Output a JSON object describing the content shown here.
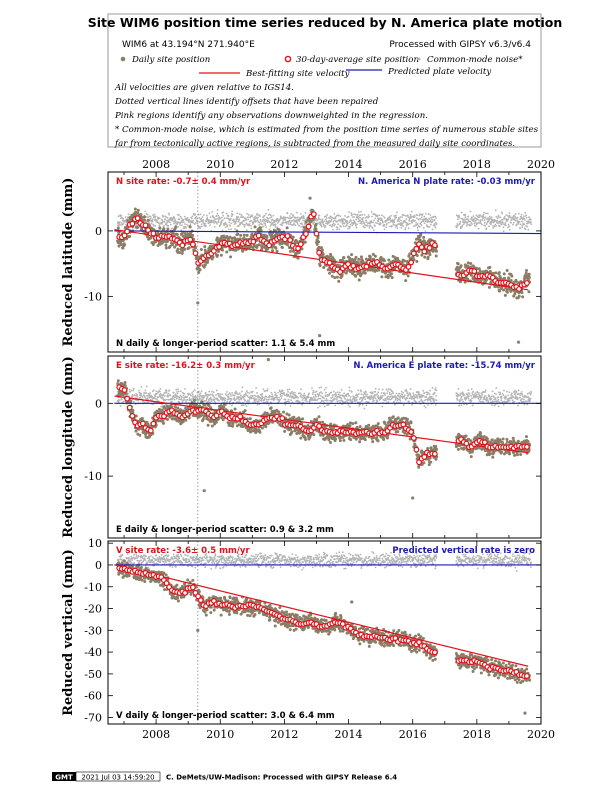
{
  "header": {
    "title": "Site WIM6 position time series reduced by N. America plate motion",
    "site_location": "WIM6 at 43.194°N 271.940°E",
    "processing": "Processed with GIPSY v6.3/v6.4",
    "legend": {
      "daily": "Daily site position",
      "avg30": "30-day-average site position",
      "cm_noise": "Common-mode noise*",
      "best_fit": "Best-fitting site velocity",
      "predicted": "Predicted plate velocity"
    },
    "notes": [
      "All velocities are given relative to IGS14.",
      "Dotted vertical lines identify offsets that have been repaired",
      "Pink regions identify any observations downweighted in the regression.",
      "* Common-mode noise, which is estimated from the position time series of numerous stable sites",
      "far from tectonically active regions, is subtracted from the measured daily site coordinates."
    ]
  },
  "colors": {
    "daily": "#8b7d66",
    "cm_noise": "#b4b4b4",
    "avg30_edge": "#e0121a",
    "best_fit": "#e0121a",
    "predicted": "#1a1ab4",
    "offset_line": "#888888"
  },
  "x_axis_ticks": [
    "2008",
    "2010",
    "2012",
    "2014",
    "2016",
    "2018",
    "2020"
  ],
  "footer": {
    "logo": "GMT",
    "timestamp": "2021 Jul 03 14:59:20",
    "credit": "C. DeMets/UW-Madison: Processed with GIPSY Release 6.4"
  },
  "chart_data": [
    {
      "type": "scatter",
      "component": "north",
      "ylabel": "Reduced latitude (mm)",
      "yticks": [
        "0",
        "-10"
      ],
      "xlim": [
        2006.5,
        2020
      ],
      "ylim": [
        -18.5,
        9
      ],
      "site_rate_label": "N site rate:  -0.7± 0.4 mm/yr",
      "plate_rate_label": "N. America N plate rate:  -0.03 mm/yr",
      "scatter_label": "N daily & longer-period scatter:   1.1 &   5.4 mm",
      "offsets": [
        2009.3
      ],
      "best_fit": {
        "x": [
          2006.7,
          2019.6
        ],
        "y": [
          0.2,
          -9.0
        ]
      },
      "predicted": {
        "x": [
          2006.7,
          2020
        ],
        "y": [
          0,
          -0.4
        ]
      },
      "avg30": {
        "x": [
          2006.8,
          2007.0,
          2007.2,
          2007.4,
          2007.6,
          2007.8,
          2008.0,
          2008.5,
          2008.8,
          2009.1,
          2009.3,
          2009.5,
          2009.8,
          2010.0,
          2010.3,
          2010.6,
          2010.9,
          2011.2,
          2011.5,
          2011.8,
          2012.1,
          2012.4,
          2012.7,
          2012.9,
          2013.1,
          2013.4,
          2013.7,
          2014.0,
          2014.3,
          2014.6,
          2014.9,
          2015.2,
          2015.5,
          2015.8,
          2016.0,
          2016.2,
          2016.4,
          2016.6,
          2017.5,
          2017.8,
          2018.1,
          2018.4,
          2018.7,
          2019.0,
          2019.3,
          2019.5
        ],
        "y": [
          -1,
          -1,
          1,
          2,
          1,
          0,
          -1,
          -1,
          -2,
          -1,
          -5,
          -4,
          -3,
          -2,
          -2,
          -2,
          -2,
          -1,
          -2,
          -1,
          -1,
          -3,
          0,
          3,
          -4,
          -5,
          -6,
          -5,
          -6,
          -5,
          -5,
          -6,
          -5,
          -6,
          -4,
          -2,
          -3,
          -2,
          -7,
          -6,
          -7,
          -7,
          -8,
          -8,
          -9,
          -8
        ]
      },
      "daily_cloud": {
        "spread": 1.9,
        "outliers": [
          [
            2009.3,
            -11
          ],
          [
            2013.1,
            -16
          ],
          [
            2019.3,
            -17
          ],
          [
            2012.8,
            5
          ]
        ]
      },
      "cm_cloud": {
        "level": 1.5,
        "spread": 1.6
      }
    },
    {
      "type": "scatter",
      "component": "east",
      "ylabel": "Reduced longitude (mm)",
      "yticks": [
        "0",
        "-10"
      ],
      "xlim": [
        2006.5,
        2020
      ],
      "ylim": [
        -18.5,
        6.5
      ],
      "site_rate_label": "E site rate:  -16.2± 0.3 mm/yr",
      "plate_rate_label": "N. America E plate rate:  -15.74 mm/yr",
      "scatter_label": "E daily & longer-period scatter:   0.9 &   3.2 mm",
      "offsets": [
        2009.3
      ],
      "best_fit": {
        "x": [
          2006.7,
          2019.6
        ],
        "y": [
          1.0,
          -6.8
        ]
      },
      "predicted": {
        "x": [
          2006.7,
          2020
        ],
        "y": [
          0,
          0
        ]
      },
      "avg30": {
        "x": [
          2006.8,
          2007.0,
          2007.2,
          2007.4,
          2007.6,
          2007.8,
          2008.0,
          2008.5,
          2008.8,
          2009.1,
          2009.3,
          2009.5,
          2009.8,
          2010.0,
          2010.3,
          2010.6,
          2010.9,
          2011.2,
          2011.5,
          2011.8,
          2012.1,
          2012.4,
          2012.7,
          2013.0,
          2013.3,
          2013.6,
          2013.9,
          2014.2,
          2014.5,
          2014.8,
          2015.1,
          2015.4,
          2015.7,
          2016.0,
          2016.2,
          2016.4,
          2016.6,
          2017.5,
          2017.8,
          2018.1,
          2018.4,
          2018.7,
          2019.0,
          2019.3,
          2019.5
        ],
        "y": [
          2,
          2,
          -1,
          -3,
          -3,
          -4,
          -2,
          -1,
          -2,
          -1,
          -1,
          -1,
          -2,
          -1,
          -2,
          -2,
          -3,
          -3,
          -2,
          -2,
          -3,
          -3,
          -4,
          -3,
          -4,
          -4,
          -4,
          -4,
          -4,
          -4,
          -4,
          -3,
          -3,
          -4,
          -8,
          -7,
          -7,
          -5,
          -6,
          -5,
          -6,
          -6,
          -6,
          -6,
          -6
        ]
      },
      "daily_cloud": {
        "spread": 1.5,
        "outliers": [
          [
            2009.5,
            -12
          ],
          [
            2011.5,
            6
          ],
          [
            2016.0,
            -13
          ]
        ]
      },
      "cm_cloud": {
        "level": 0.8,
        "spread": 1.4
      }
    },
    {
      "type": "scatter",
      "component": "vertical",
      "ylabel": "Reduced vertical (mm)",
      "yticks": [
        "10",
        "0",
        "-10",
        "-20",
        "-30",
        "-40",
        "-50",
        "-60",
        "-70"
      ],
      "xlim": [
        2006.5,
        2020
      ],
      "ylim": [
        -73,
        11
      ],
      "site_rate_label": "V site rate:  -3.6± 0.5 mm/yr",
      "plate_rate_label": "Predicted vertical rate is zero",
      "scatter_label": "V daily & longer-period scatter:   3.0 &   6.4 mm",
      "offsets": [
        2009.3
      ],
      "best_fit": {
        "x": [
          2006.7,
          2019.6
        ],
        "y": [
          0.0,
          -46.5
        ]
      },
      "predicted": {
        "x": [
          2006.7,
          2020
        ],
        "y": [
          0,
          0
        ]
      },
      "avg30": {
        "x": [
          2006.8,
          2007.0,
          2007.3,
          2007.6,
          2007.9,
          2008.2,
          2008.5,
          2008.8,
          2009.1,
          2009.3,
          2009.5,
          2009.8,
          2010.1,
          2010.4,
          2010.7,
          2011.0,
          2011.3,
          2011.6,
          2011.9,
          2012.2,
          2012.5,
          2012.8,
          2013.1,
          2013.4,
          2013.7,
          2014.0,
          2014.3,
          2014.6,
          2014.9,
          2015.2,
          2015.5,
          2015.8,
          2016.0,
          2016.2,
          2016.4,
          2016.6,
          2017.5,
          2017.8,
          2018.1,
          2018.4,
          2018.7,
          2019.0,
          2019.3,
          2019.5
        ],
        "y": [
          -1,
          -2,
          -3,
          -4,
          -5,
          -6,
          -12,
          -13,
          -10,
          -14,
          -19,
          -17,
          -18,
          -19,
          -19,
          -19,
          -20,
          -22,
          -24,
          -26,
          -27,
          -26,
          -28,
          -28,
          -26,
          -29,
          -32,
          -33,
          -33,
          -34,
          -34,
          -35,
          -36,
          -36,
          -38,
          -40,
          -44,
          -44,
          -45,
          -47,
          -48,
          -49,
          -50,
          -51
        ]
      },
      "daily_cloud": {
        "spread": 4.5,
        "outliers": [
          [
            2019.5,
            -68
          ],
          [
            2014.1,
            -17
          ],
          [
            2009.3,
            -30
          ]
        ]
      },
      "cm_cloud": {
        "level": 2,
        "spread": 4
      }
    }
  ]
}
